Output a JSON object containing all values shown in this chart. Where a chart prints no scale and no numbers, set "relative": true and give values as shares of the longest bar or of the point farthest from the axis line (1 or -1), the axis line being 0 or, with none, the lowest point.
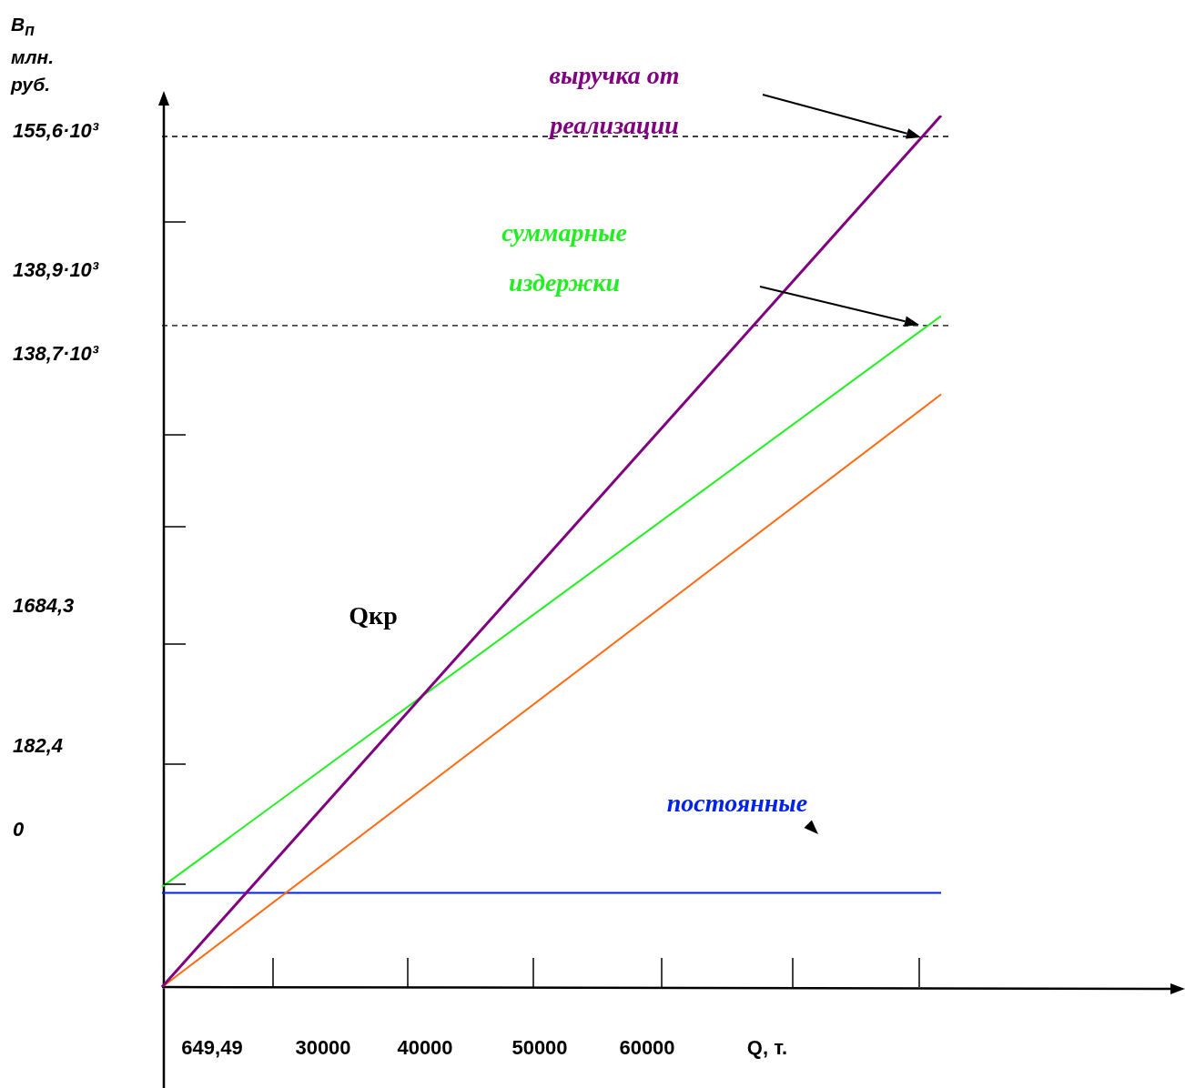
{
  "chart_data": {
    "type": "line",
    "relative": true,
    "categories": [
      null,
      null
    ],
    "marker": "none",
    "ylabel": "B$_{п}$ млн. руб.",
    "xlabel": "Q, т.",
    "series": [
      {
        "name": "выручка от реализации",
        "color": "#800080",
        "values": [
          0,
          1
        ]
      },
      {
        "name": "суммарные издержки",
        "color": "#22ee22",
        "values": [
          0.115,
          0.77
        ]
      },
      {
        "color": "#ff6a10",
        "values": [
          0,
          0.68
        ]
      },
      {
        "name": "постоянные",
        "color": "#0022ee",
        "values": [
          0.108,
          0.108
        ]
      }
    ],
    "ref_lines": [
      {
        "axis": "y",
        "value": 0.976,
        "line_style": "dashed",
        "color": "#000000"
      },
      {
        "axis": "y",
        "value": 0.759,
        "line_style": "dashed",
        "color": "#000000"
      }
    ],
    "annotations": [
      "155,6·10³",
      "138,9·10³",
      "138,7·10³",
      "1684,3",
      "182,4",
      "0",
      "649,49",
      "30000",
      "40000",
      "50000",
      "60000",
      "Qкр"
    ]
  }
}
